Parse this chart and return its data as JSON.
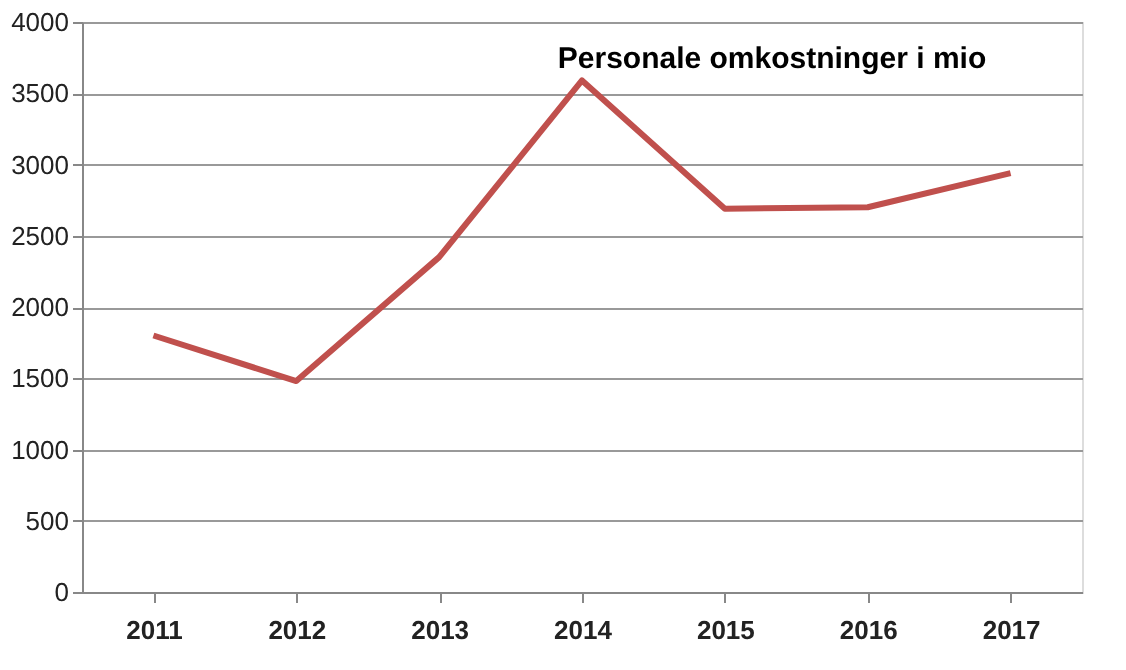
{
  "chart_data": {
    "type": "line",
    "title": "Personale omkostninger i mio",
    "categories": [
      "2011",
      "2012",
      "2013",
      "2014",
      "2015",
      "2016",
      "2017"
    ],
    "series": [
      {
        "color": "#c0504d",
        "values": [
          1800,
          1480,
          2350,
          3590,
          2690,
          2700,
          2940
        ]
      }
    ],
    "ylim": [
      0,
      4000
    ],
    "yticks": [
      0,
      500,
      1000,
      1500,
      2000,
      2500,
      3000,
      3500,
      4000
    ],
    "grid": "y",
    "legend": false,
    "marker": "none",
    "line_style": "solid"
  }
}
